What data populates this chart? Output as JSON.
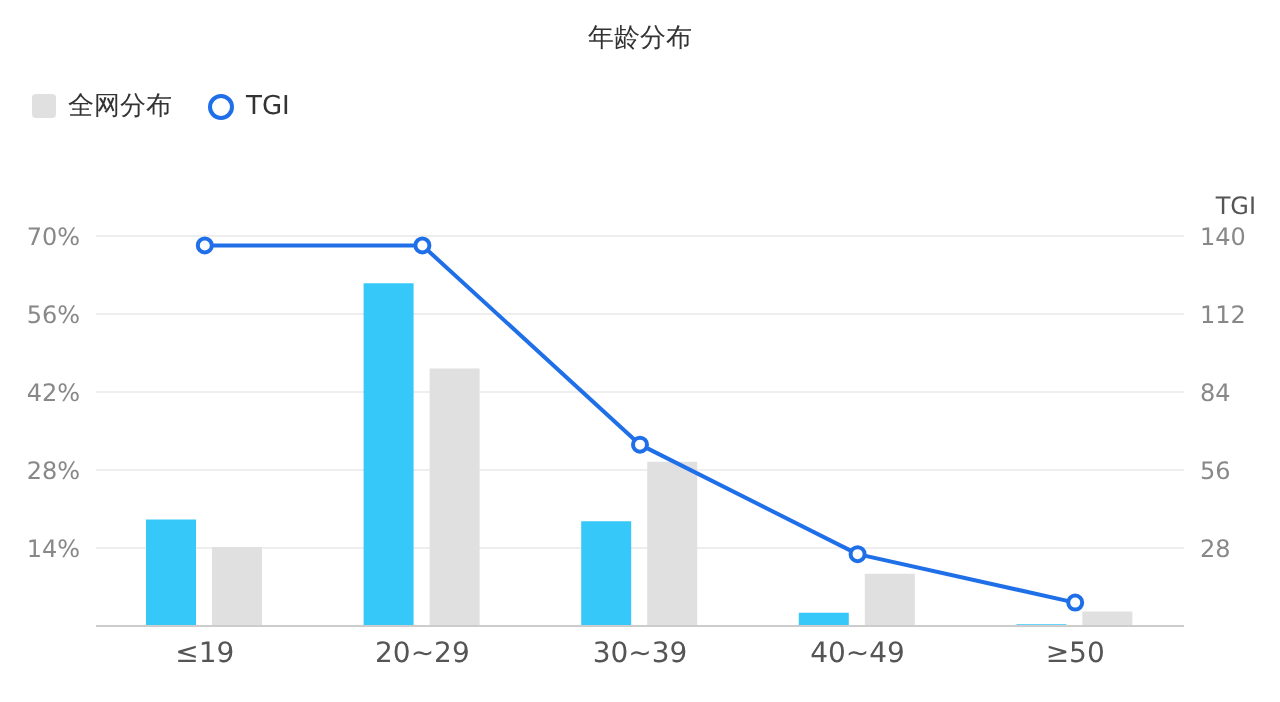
{
  "chart_data": {
    "type": "bar",
    "title": "年龄分布",
    "y2label": "TGI",
    "categories": [
      "≤19",
      "20~29",
      "30~39",
      "40~49",
      "≥50"
    ],
    "series": [
      {
        "color": "#36c8f8",
        "values": [
          19.1,
          61.5,
          18.8,
          2.4,
          0.3
        ]
      },
      {
        "name": "全网分布",
        "color": "#e0e0e0",
        "values": [
          14.2,
          46.2,
          29.5,
          9.4,
          2.6
        ]
      },
      {
        "name": "TGI",
        "type": "line",
        "axis": "y2",
        "color": "#1f6fe8",
        "marker": "circle",
        "values": [
          136.6,
          136.6,
          65.1,
          25.8,
          8.4
        ]
      }
    ],
    "ylim": [
      0,
      70
    ],
    "yticks": [
      {
        "value": 14,
        "label": "14%"
      },
      {
        "value": 28,
        "label": "28%"
      },
      {
        "value": 42,
        "label": "42%"
      },
      {
        "value": 56,
        "label": "56%"
      },
      {
        "value": 70,
        "label": "70%"
      }
    ],
    "y2lim": [
      0,
      140
    ],
    "y2ticks": [
      28,
      56,
      84,
      112,
      140
    ],
    "grid": "y",
    "legend": "top left"
  }
}
